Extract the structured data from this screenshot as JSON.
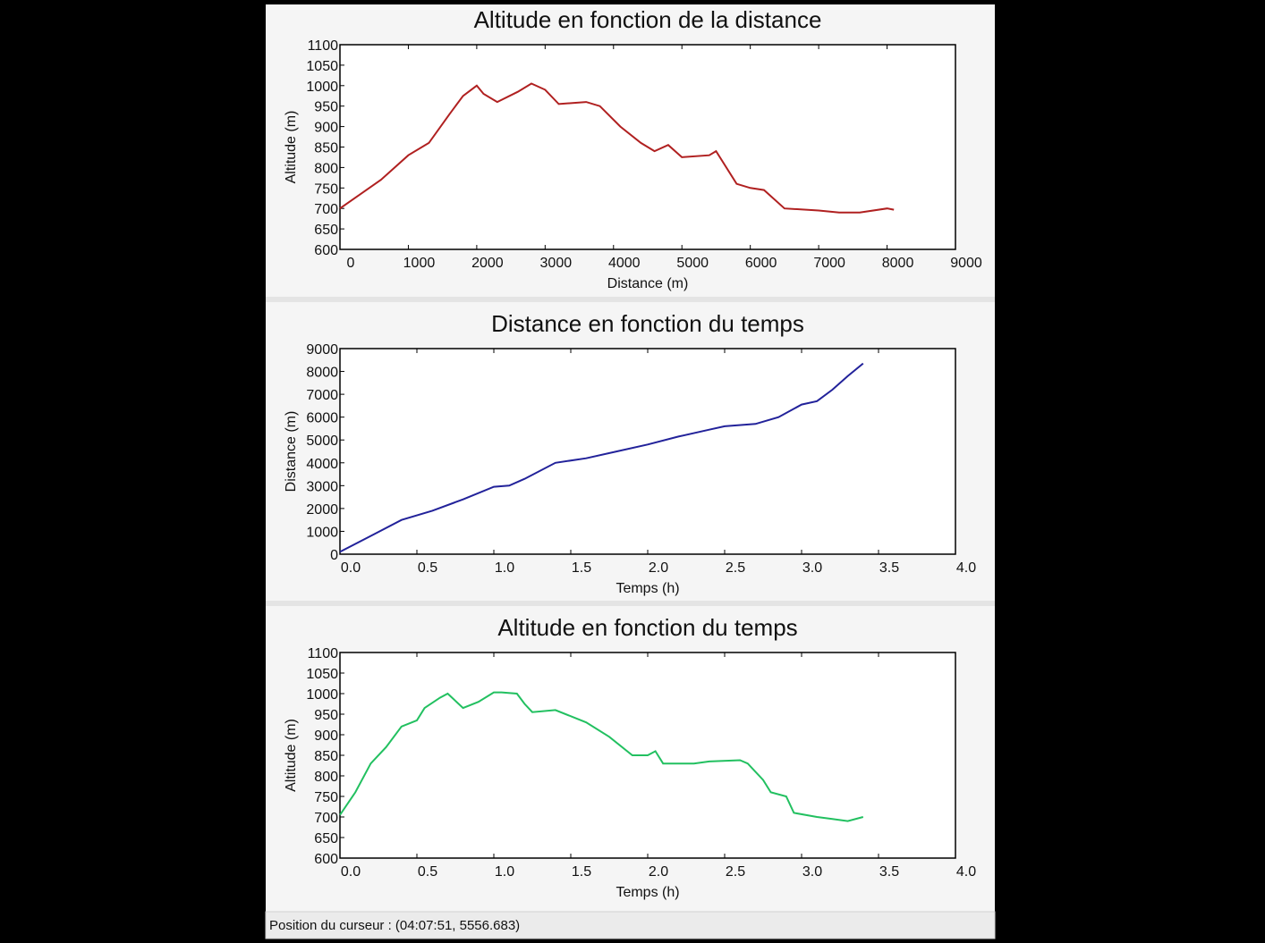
{
  "chart_data": [
    {
      "type": "line",
      "title": "Altitude en fonction de la distance",
      "x_label": "Distance (m)",
      "y_label": "Altitude (m)",
      "color": "#b02020",
      "x": [
        0,
        300,
        600,
        1000,
        1300,
        1600,
        1800,
        2000,
        2100,
        2300,
        2600,
        2800,
        3000,
        3200,
        3600,
        3800,
        4100,
        4400,
        4600,
        4800,
        5000,
        5400,
        5500,
        5800,
        6000,
        6200,
        6500,
        7000,
        7300,
        7600,
        8000,
        8100
      ],
      "values": [
        700,
        735,
        770,
        830,
        860,
        930,
        975,
        1000,
        980,
        960,
        985,
        1005,
        990,
        955,
        960,
        950,
        900,
        860,
        840,
        855,
        825,
        830,
        840,
        760,
        750,
        745,
        700,
        695,
        690,
        690,
        700,
        697
      ],
      "xlim": [
        0,
        9000
      ],
      "xticks": [
        0,
        1000,
        2000,
        3000,
        4000,
        5000,
        6000,
        7000,
        8000,
        9000
      ],
      "ylim": [
        600,
        1100
      ],
      "yticks": [
        600,
        650,
        700,
        750,
        800,
        850,
        900,
        950,
        1000,
        1050,
        1100
      ]
    },
    {
      "type": "line",
      "title": "Distance en fonction du temps",
      "x_label": "Temps (h)",
      "y_label": "Distance (m)",
      "color": "#22229a",
      "x": [
        0,
        0.2,
        0.4,
        0.6,
        0.8,
        1.0,
        1.1,
        1.2,
        1.4,
        1.6,
        1.8,
        2.0,
        2.2,
        2.4,
        2.5,
        2.7,
        2.85,
        3.0,
        3.1,
        3.2,
        3.3,
        3.4
      ],
      "values": [
        100,
        800,
        1500,
        1900,
        2400,
        2950,
        3000,
        3300,
        4000,
        4200,
        4500,
        4800,
        5150,
        5450,
        5600,
        5700,
        6000,
        6550,
        6700,
        7200,
        7800,
        8350
      ],
      "xlim": [
        0,
        4
      ],
      "xticks": [
        {
          "value": 0,
          "label": "0.0"
        },
        0.5,
        {
          "value": 1,
          "label": "1.0"
        },
        1.5,
        {
          "value": 2,
          "label": "2.0"
        },
        2.5,
        {
          "value": 3,
          "label": "3.0"
        },
        3.5,
        {
          "value": 4,
          "label": "4.0"
        }
      ],
      "ylim": [
        0,
        9000
      ],
      "yticks": [
        0,
        1000,
        2000,
        3000,
        4000,
        5000,
        6000,
        7000,
        8000,
        9000
      ]
    },
    {
      "type": "line",
      "title": "Altitude en fonction du temps",
      "x_label": "Temps (h)",
      "y_label": "Altitude (m)",
      "color": "#22c060",
      "x": [
        0,
        0.1,
        0.2,
        0.3,
        0.4,
        0.5,
        0.55,
        0.65,
        0.7,
        0.8,
        0.9,
        1.0,
        1.05,
        1.15,
        1.2,
        1.25,
        1.4,
        1.6,
        1.75,
        1.9,
        2.0,
        2.05,
        2.1,
        2.3,
        2.4,
        2.6,
        2.65,
        2.75,
        2.8,
        2.9,
        2.95,
        3.1,
        3.2,
        3.3,
        3.4
      ],
      "values": [
        705,
        760,
        830,
        870,
        920,
        935,
        965,
        990,
        1000,
        965,
        980,
        1003,
        1003,
        1000,
        975,
        955,
        960,
        930,
        895,
        850,
        850,
        860,
        830,
        830,
        835,
        838,
        830,
        790,
        760,
        750,
        710,
        700,
        695,
        690,
        700
      ],
      "xlim": [
        0,
        4
      ],
      "xticks": [
        {
          "value": 0,
          "label": "0.0"
        },
        0.5,
        {
          "value": 1,
          "label": "1.0"
        },
        1.5,
        {
          "value": 2,
          "label": "2.0"
        },
        2.5,
        {
          "value": 3,
          "label": "3.0"
        },
        3.5,
        {
          "value": 4,
          "label": "4.0"
        }
      ],
      "ylim": [
        600,
        1100
      ],
      "yticks": [
        600,
        650,
        700,
        750,
        800,
        850,
        900,
        950,
        1000,
        1050,
        1100
      ]
    }
  ],
  "status_bar": "Position du curseur : (04:07:51, 5556.683)"
}
